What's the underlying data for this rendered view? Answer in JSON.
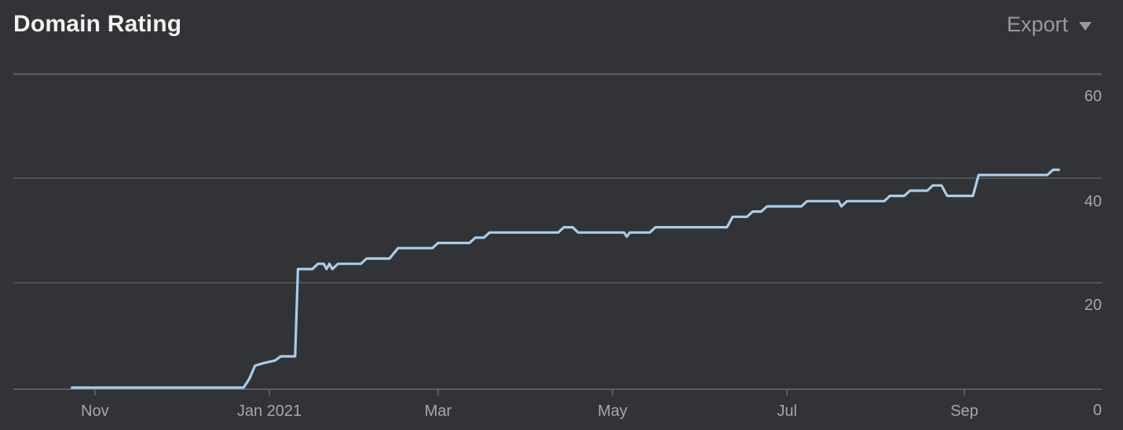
{
  "header": {
    "title": "Domain Rating",
    "export_label": "Export"
  },
  "icons": {
    "export_dropdown": "caret-down-icon"
  },
  "colors": {
    "background": "#323336",
    "line": "#a9cdec",
    "grid": "#5a5b5e",
    "text": "#a6a7aa"
  },
  "chart_data": {
    "type": "line",
    "title": "Domain Rating",
    "xlabel": "",
    "ylabel": "",
    "ylim": [
      0,
      60
    ],
    "yticks": [
      0,
      20,
      40,
      60
    ],
    "grid": true,
    "y_axis_side": "right",
    "x_ticks": [
      {
        "label": "Nov",
        "date": "2020-11-01"
      },
      {
        "label": "Jan 2021",
        "date": "2021-01-01"
      },
      {
        "label": "Mar",
        "date": "2021-03-01"
      },
      {
        "label": "May",
        "date": "2021-05-01"
      },
      {
        "label": "Jul",
        "date": "2021-07-01"
      },
      {
        "label": "Sep",
        "date": "2021-09-01"
      }
    ],
    "series": [
      {
        "points": [
          [
            "2020-10-24",
            0.3
          ],
          [
            "2020-12-23",
            0.3
          ],
          [
            "2020-12-25",
            2
          ],
          [
            "2020-12-27",
            4.5
          ],
          [
            "2020-12-30",
            5
          ],
          [
            "2021-01-03",
            5.5
          ],
          [
            "2021-01-05",
            6.3
          ],
          [
            "2021-01-10",
            6.3
          ],
          [
            "2021-01-11",
            23
          ],
          [
            "2021-01-16",
            23
          ],
          [
            "2021-01-18",
            24
          ],
          [
            "2021-01-20",
            24
          ],
          [
            "2021-01-21",
            23
          ],
          [
            "2021-01-22",
            24
          ],
          [
            "2021-01-23",
            23
          ],
          [
            "2021-01-25",
            24
          ],
          [
            "2021-02-02",
            24
          ],
          [
            "2021-02-04",
            25
          ],
          [
            "2021-02-12",
            25
          ],
          [
            "2021-02-15",
            27
          ],
          [
            "2021-02-27",
            27
          ],
          [
            "2021-03-01",
            28
          ],
          [
            "2021-03-12",
            28
          ],
          [
            "2021-03-14",
            29
          ],
          [
            "2021-03-17",
            29
          ],
          [
            "2021-03-19",
            30
          ],
          [
            "2021-04-12",
            30
          ],
          [
            "2021-04-14",
            31
          ],
          [
            "2021-04-17",
            31
          ],
          [
            "2021-04-19",
            30
          ],
          [
            "2021-05-05",
            30
          ],
          [
            "2021-05-06",
            29.2
          ],
          [
            "2021-05-07",
            30
          ],
          [
            "2021-05-14",
            30
          ],
          [
            "2021-05-16",
            31
          ],
          [
            "2021-06-10",
            31
          ],
          [
            "2021-06-12",
            33
          ],
          [
            "2021-06-17",
            33
          ],
          [
            "2021-06-19",
            34
          ],
          [
            "2021-06-22",
            34
          ],
          [
            "2021-06-24",
            35
          ],
          [
            "2021-07-06",
            35
          ],
          [
            "2021-07-08",
            36
          ],
          [
            "2021-07-19",
            36
          ],
          [
            "2021-07-20",
            35
          ],
          [
            "2021-07-22",
            36
          ],
          [
            "2021-08-04",
            36
          ],
          [
            "2021-08-06",
            37
          ],
          [
            "2021-08-11",
            37
          ],
          [
            "2021-08-13",
            38
          ],
          [
            "2021-08-19",
            38
          ],
          [
            "2021-08-21",
            39
          ],
          [
            "2021-08-24",
            39
          ],
          [
            "2021-08-26",
            37
          ],
          [
            "2021-09-04",
            37
          ],
          [
            "2021-09-06",
            41
          ],
          [
            "2021-09-30",
            41
          ],
          [
            "2021-10-02",
            42
          ],
          [
            "2021-10-04",
            42
          ]
        ]
      }
    ]
  }
}
